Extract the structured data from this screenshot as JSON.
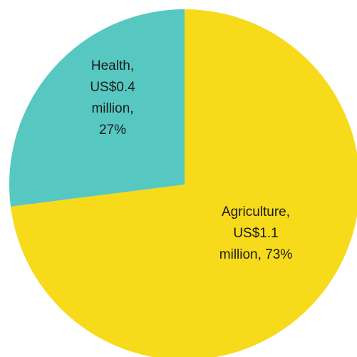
{
  "chart_data": {
    "type": "pie",
    "slices": [
      {
        "category": "Agriculture",
        "amount": "US$1.1 million",
        "percent": 73,
        "color": "#F7DA1A",
        "label_lines": [
          "Agriculture,",
          "US$1.1",
          "million, 73%"
        ]
      },
      {
        "category": "Health",
        "amount": "US$0.4 million",
        "percent": 27,
        "color": "#56C8C1",
        "label_lines": [
          "Health,",
          "US$0.4",
          "million,",
          "27%"
        ]
      }
    ],
    "start_angle_deg": 0,
    "direction": "clockwise",
    "legend": "none"
  }
}
